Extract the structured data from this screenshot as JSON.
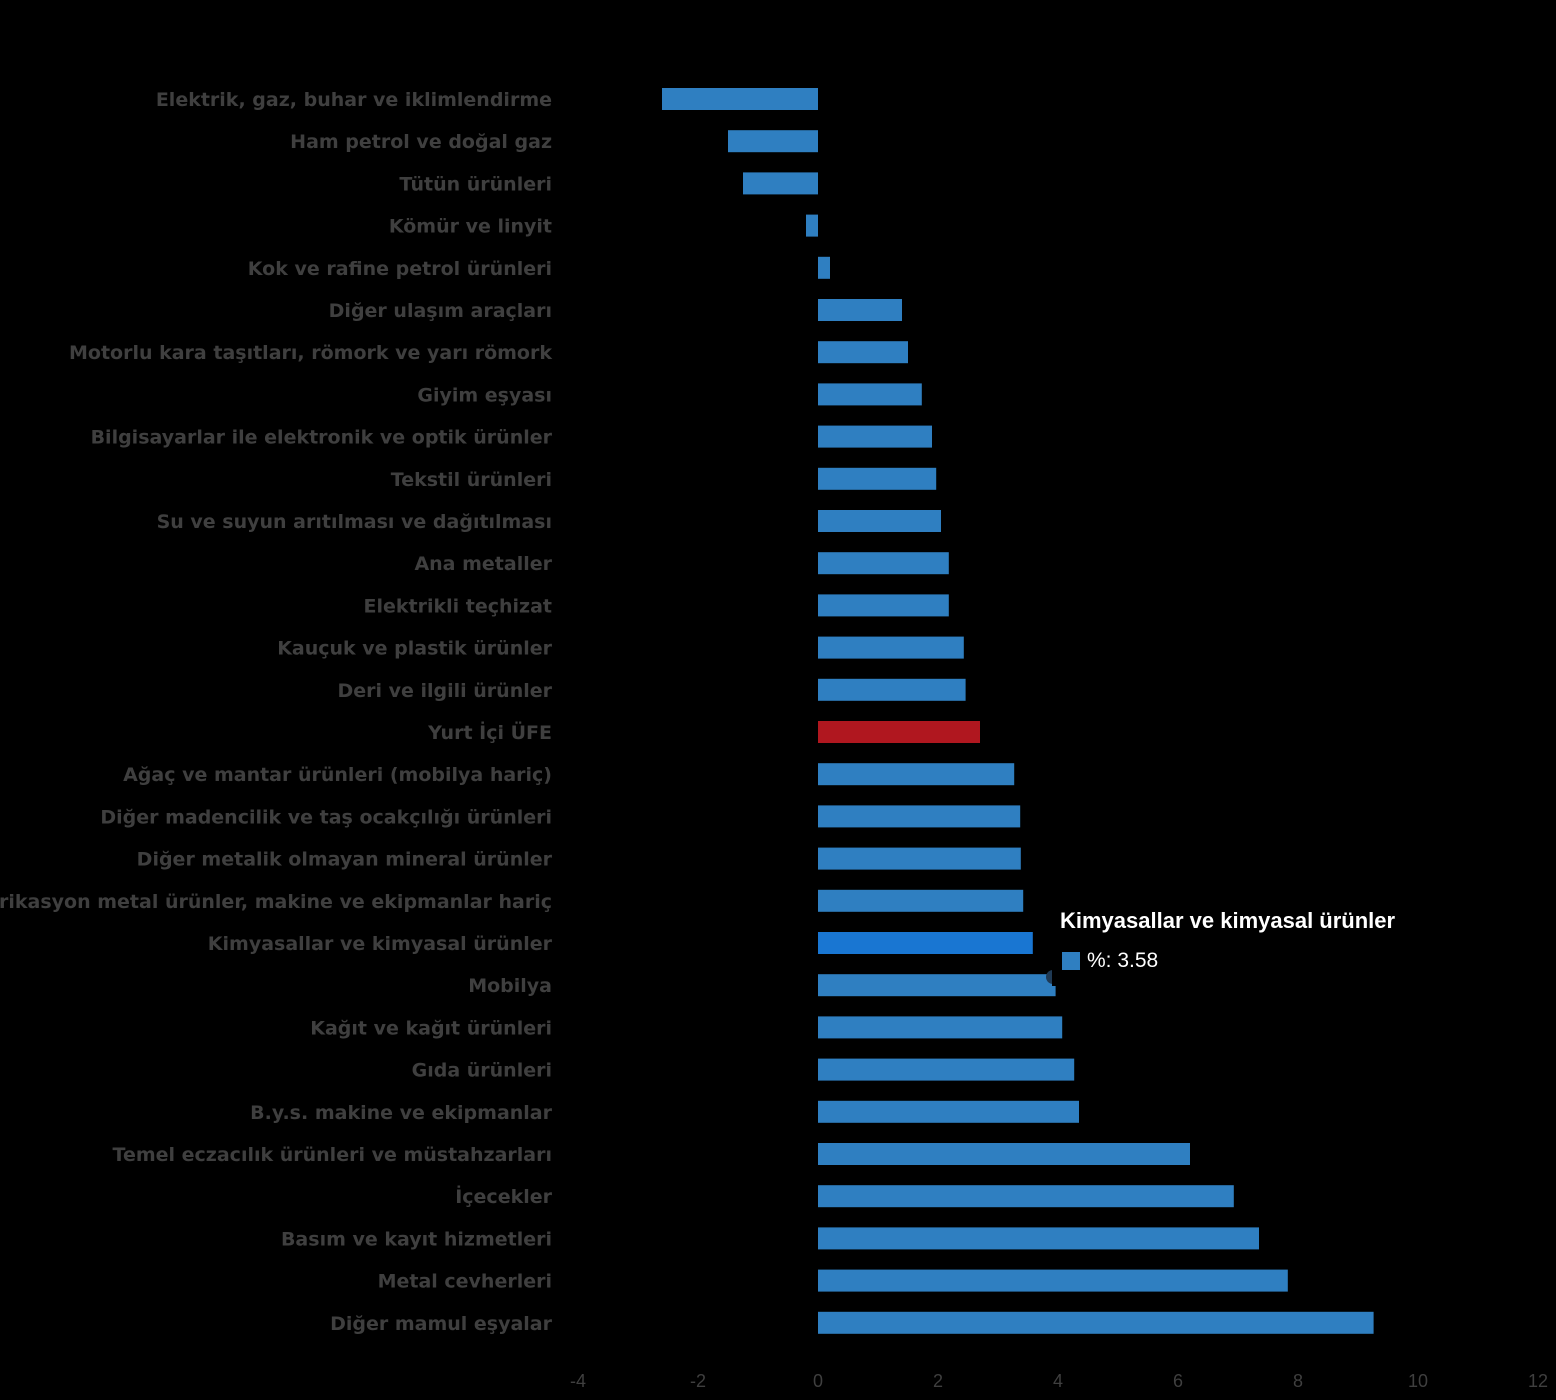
{
  "colors": {
    "background": "#000000",
    "bar": "#2f7fc1",
    "bar_highlight": "#b0171f",
    "bar_hover": "#1976d2",
    "label": "#3f3f3f",
    "tooltip_text": "#ffffff"
  },
  "chart_data": {
    "type": "bar",
    "orientation": "horizontal",
    "categories": [
      "Elektrik, gaz, buhar ve iklimlendirme",
      "Ham petrol ve doğal gaz",
      "Tütün ürünleri",
      "Kömür ve linyit",
      "Kok ve rafine petrol ürünleri",
      "Diğer ulaşım araçları",
      "Motorlu kara taşıtları, römork ve yarı römork",
      "Giyim eşyası",
      "Bilgisayarlar ile elektronik ve optik ürünler",
      "Tekstil ürünleri",
      "Su ve suyun arıtılması ve dağıtılması",
      "Ana metaller",
      "Elektrikli teçhizat",
      "Kauçuk ve plastik ürünler",
      "Deri ve ilgili ürünler",
      "Yurt İçi ÜFE",
      "Ağaç ve mantar ürünleri (mobilya hariç)",
      "Diğer madencilik ve taş ocakçılığı ürünleri",
      "Diğer metalik olmayan mineral ürünler",
      "Fabrikasyon metal ürünler, makine ve ekipmanlar hariç",
      "Kimyasallar ve kimyasal ürünler",
      "Mobilya",
      "Kağıt ve kağıt ürünleri",
      "Gıda ürünleri",
      "B.y.s. makine ve ekipmanlar",
      "Temel eczacılık ürünleri ve müstahzarları",
      "İçecekler",
      "Basım ve kayıt hizmetleri",
      "Metal cevherleri",
      "Diğer mamul eşyalar"
    ],
    "values": [
      -2.6,
      -1.5,
      -1.25,
      -0.2,
      0.2,
      1.4,
      1.5,
      1.73,
      1.9,
      1.97,
      2.05,
      2.18,
      2.18,
      2.43,
      2.46,
      2.7,
      3.27,
      3.37,
      3.38,
      3.42,
      3.58,
      3.96,
      4.07,
      4.27,
      4.35,
      6.2,
      6.93,
      7.35,
      7.83,
      9.26
    ],
    "highlight_index": 15,
    "hover_index": 20,
    "xlim": [
      -4,
      12
    ],
    "xticks": [
      -4,
      -2,
      0,
      2,
      4,
      6,
      8,
      10,
      12
    ],
    "xlabel": "",
    "ylabel": "",
    "grid": false,
    "legend": "none"
  },
  "tooltip": {
    "title": "Kimyasallar ve kimyasal ürünler",
    "value_text": "%: 3.58"
  }
}
